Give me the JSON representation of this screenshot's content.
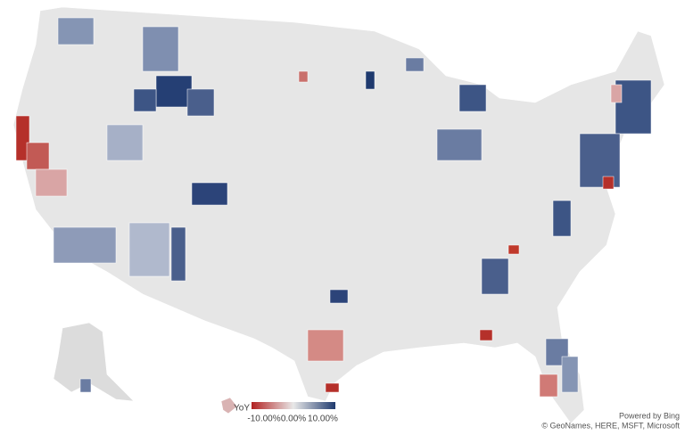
{
  "map": {
    "legend": {
      "title": "YoY",
      "range": [
        -10,
        10
      ],
      "colors": [
        "#b22222",
        "#e8e8e8",
        "#1f3a6e"
      ],
      "ticks": [
        {
          "value": -10,
          "label": "-10.00%"
        },
        {
          "value": 0,
          "label": "0.00%"
        },
        {
          "value": 10,
          "label": "10.00%"
        }
      ]
    },
    "attribution": [
      "Powered by Bing",
      "© GeoNames, HERE, MSFT, Microsoft"
    ]
  }
}
